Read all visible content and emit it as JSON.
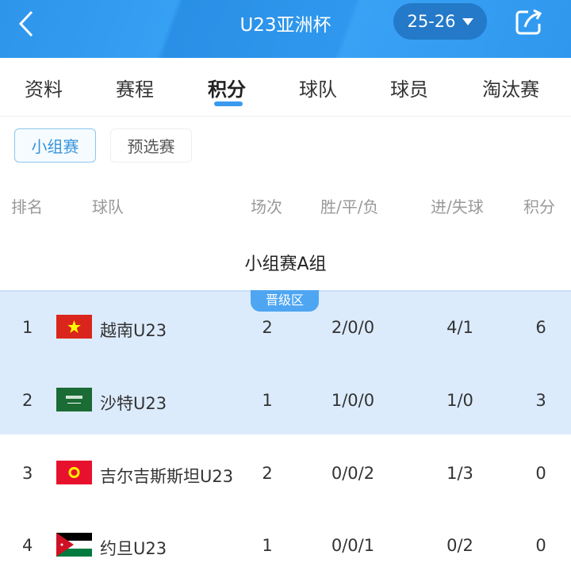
{
  "header": {
    "title": "U23亚洲杯",
    "season": "25-26"
  },
  "tabs": [
    "资料",
    "赛程",
    "积分",
    "球队",
    "球员",
    "淘汰赛"
  ],
  "active_tab": "积分",
  "subtabs": [
    "小组赛",
    "预选赛"
  ],
  "columns": {
    "rank": "排名",
    "team": "球队",
    "played": "场次",
    "wdl": "胜/平/负",
    "goals": "进/失球",
    "points": "积分"
  },
  "group": {
    "title": "小组赛A组",
    "zone_badge": "晋级区"
  },
  "rows": [
    {
      "rank": "1",
      "flag": "vietnam-flag",
      "team": "越南U23",
      "played": "2",
      "wdl": "2/0/0",
      "goals": "4/1",
      "points": "6",
      "qualified": true
    },
    {
      "rank": "2",
      "flag": "saudi-arabia-flag",
      "team": "沙特U23",
      "played": "1",
      "wdl": "1/0/0",
      "goals": "1/0",
      "points": "3",
      "qualified": true
    },
    {
      "rank": "3",
      "flag": "kyrgyzstan-flag",
      "team": "吉尔吉斯斯坦U23",
      "played": "2",
      "wdl": "0/0/2",
      "goals": "1/3",
      "points": "0",
      "qualified": false
    },
    {
      "rank": "4",
      "flag": "jordan-flag",
      "team": "约旦U23",
      "played": "1",
      "wdl": "0/0/1",
      "goals": "0/2",
      "points": "0",
      "qualified": false
    }
  ],
  "colors": {
    "header": "#2f98ee",
    "highlight": "#dcebfc",
    "accent": "#3a9af0"
  }
}
